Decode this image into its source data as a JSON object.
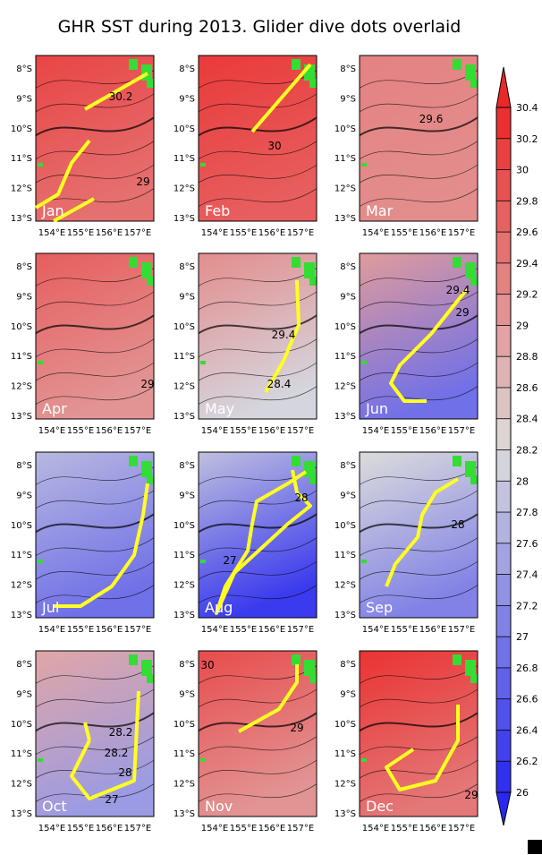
{
  "title": "GHR SST during 2013. Glider dive dots overlaid",
  "lat_labels": [
    "8°S",
    "9°S",
    "10°S",
    "11°S",
    "12°S",
    "13°S"
  ],
  "lon_labels": [
    "154°E",
    "155°E",
    "156°E",
    "157°E"
  ],
  "panels": [
    {
      "label": "Jan",
      "contour_labels": [
        "30.2",
        "29"
      ]
    },
    {
      "label": "Feb",
      "contour_labels": [
        "30"
      ]
    },
    {
      "label": "Mar",
      "contour_labels": [
        "29.6"
      ]
    },
    {
      "label": "Apr",
      "contour_labels": [
        "29"
      ]
    },
    {
      "label": "May",
      "contour_labels": [
        "29.4",
        "28.4"
      ]
    },
    {
      "label": "Jun",
      "contour_labels": [
        "29.4",
        "29"
      ]
    },
    {
      "label": "Jul",
      "contour_labels": []
    },
    {
      "label": "Aug",
      "contour_labels": [
        "28",
        "27"
      ]
    },
    {
      "label": "Sep",
      "contour_labels": [
        "28"
      ]
    },
    {
      "label": "Oct",
      "contour_labels": [
        "28.2",
        "28.2",
        "28",
        "27"
      ]
    },
    {
      "label": "Nov",
      "contour_labels": [
        "30",
        "29"
      ]
    },
    {
      "label": "Dec",
      "contour_labels": [
        "29"
      ]
    }
  ],
  "colorbar": {
    "ticks": [
      30.4,
      30.2,
      30,
      29.8,
      29.6,
      29.4,
      29.2,
      29,
      28.8,
      28.6,
      28.4,
      28.2,
      28,
      27.8,
      27.6,
      27.4,
      27.2,
      27,
      26.8,
      26.6,
      26.4,
      26.2,
      26
    ]
  }
}
